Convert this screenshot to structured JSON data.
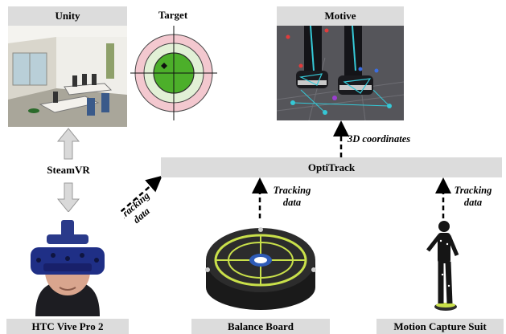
{
  "panels": {
    "unity": "Unity",
    "target": "Target",
    "motive": "Motive"
  },
  "hub": "OptiTrack",
  "link_label": "SteamVR",
  "arrow_labels": {
    "coords": "3D coordinates",
    "hmd_line1": "Tracking",
    "hmd_line2": "data",
    "board_line1": "Tracking",
    "board_line2": "data",
    "suit_line1": "Tracking",
    "suit_line2": "data"
  },
  "devices": {
    "hmd": "HTC Vive Pro 2",
    "board": "Balance Board",
    "suit": "Motion Capture Suit"
  },
  "colors": {
    "label_bg": "#dcdcdc",
    "target_outer": "#f3c8cf",
    "target_mid": "#e2f0d6",
    "target_inner": "#4caf2a",
    "board_accent": "#c9e04a"
  }
}
